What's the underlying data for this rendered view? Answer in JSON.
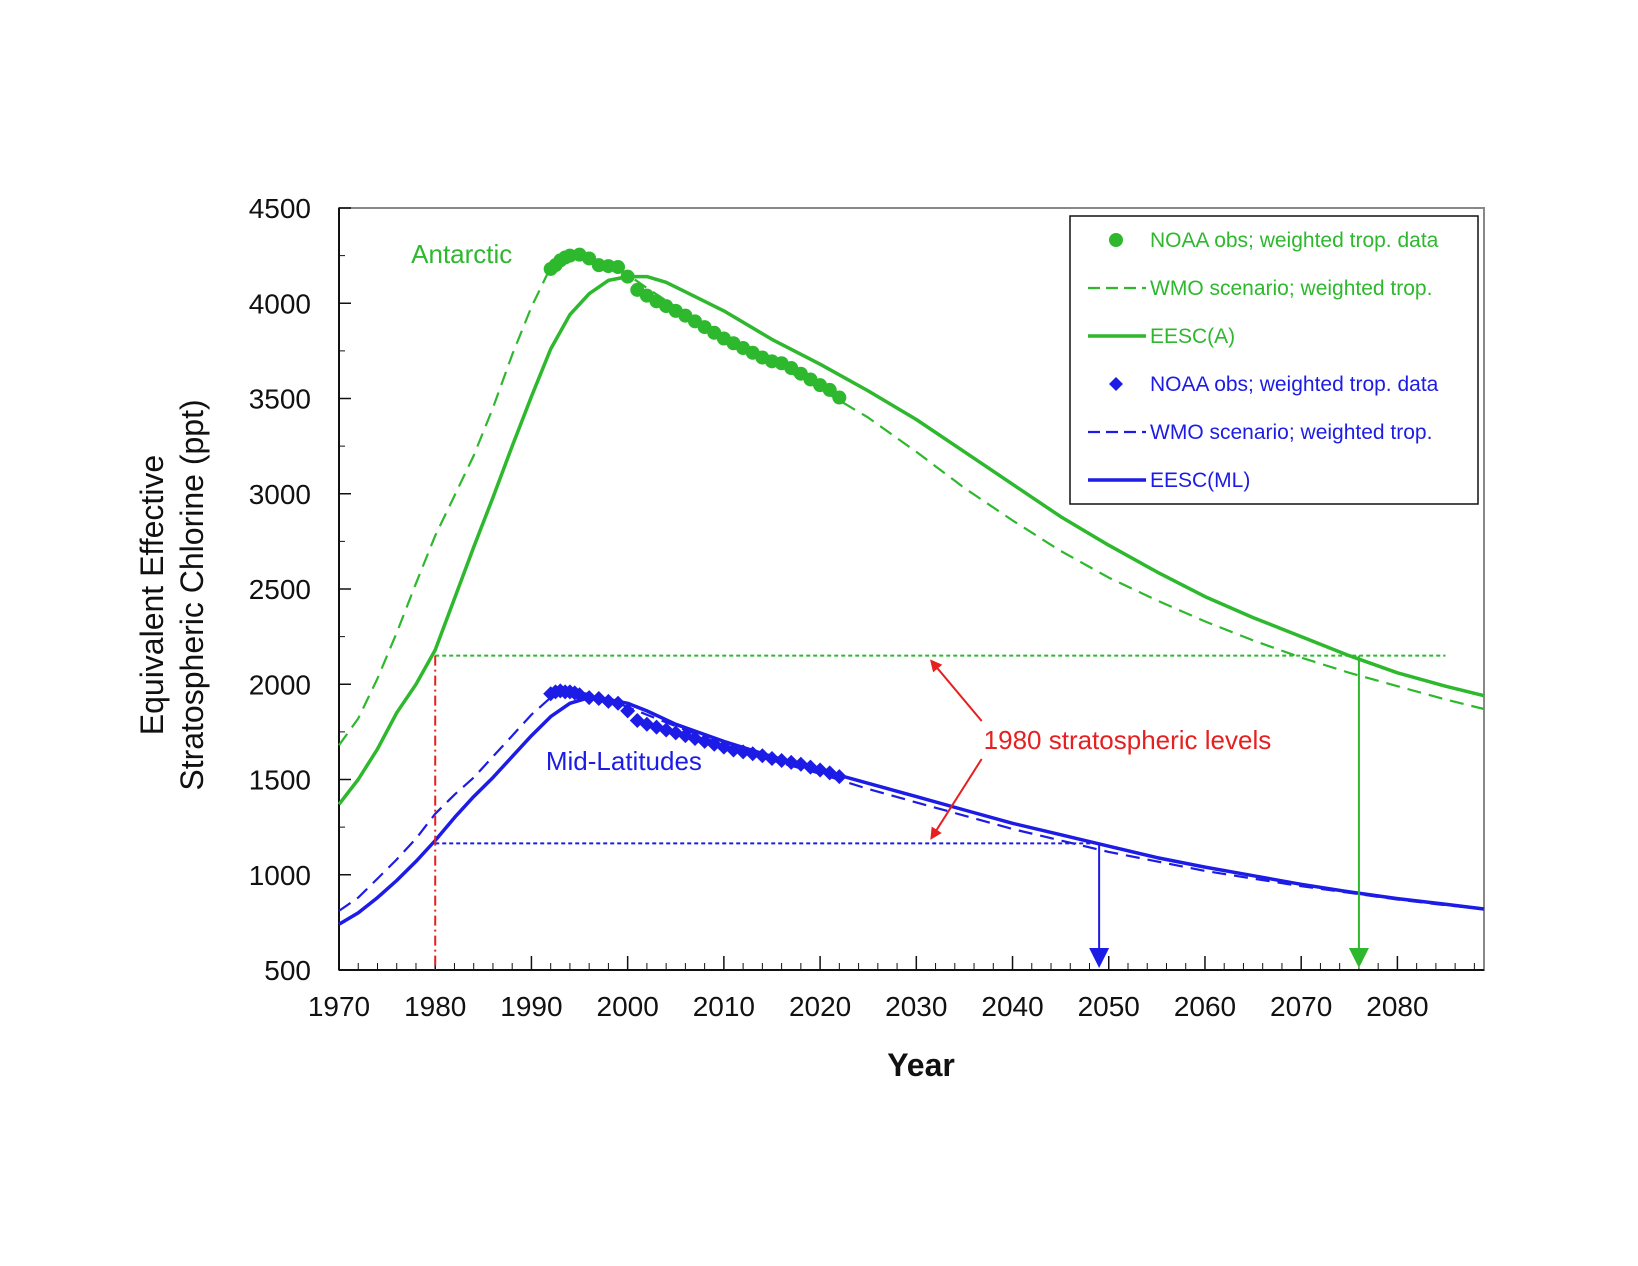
{
  "chart_data": {
    "type": "line",
    "xlabel": "Year",
    "ylabel_lines": [
      "Equivalent Effective",
      "Stratospheric Chlorine (ppt)"
    ],
    "xlim": [
      1970,
      2089
    ],
    "ylim": [
      500,
      4500
    ],
    "x_ticks": [
      1970,
      1980,
      1990,
      2000,
      2010,
      2020,
      2030,
      2040,
      2050,
      2060,
      2070,
      2080
    ],
    "y_ticks": [
      500,
      1000,
      1500,
      2000,
      2500,
      3000,
      3500,
      4000,
      4500
    ],
    "colors": {
      "green": "#2db82d",
      "blue": "#1c1ce6",
      "red": "#e62020",
      "axis": "#111111"
    },
    "series": [
      {
        "name": "NOAA obs; weighted trop. data",
        "group": "antarctic",
        "style": "circles",
        "x": [
          1992,
          1992.5,
          1993,
          1993.5,
          1994,
          1995,
          1996,
          1997,
          1998,
          1999,
          2000,
          2001,
          2002,
          2003,
          2004,
          2005,
          2006,
          2007,
          2008,
          2009,
          2010,
          2011,
          2012,
          2013,
          2014,
          2015,
          2016,
          2017,
          2018,
          2019,
          2020,
          2021,
          2022
        ],
        "y": [
          4180,
          4200,
          4225,
          4240,
          4250,
          4255,
          4235,
          4200,
          4195,
          4190,
          4140,
          4070,
          4040,
          4010,
          3985,
          3960,
          3935,
          3905,
          3875,
          3845,
          3815,
          3790,
          3765,
          3740,
          3715,
          3695,
          3685,
          3660,
          3630,
          3600,
          3570,
          3545,
          3505
        ]
      },
      {
        "name": "WMO scenario; weighted trop.",
        "group": "antarctic",
        "style": "dashed",
        "x": [
          1970,
          1972,
          1974,
          1976,
          1978,
          1980,
          1982,
          1984,
          1986,
          1988,
          1990,
          1992,
          1994,
          1996,
          1998,
          2000,
          2002,
          2005,
          2010,
          2015,
          2020,
          2025,
          2030,
          2035,
          2040,
          2045,
          2050,
          2055,
          2060,
          2065,
          2070,
          2075,
          2080,
          2085,
          2089
        ],
        "y": [
          1680,
          1820,
          2030,
          2270,
          2530,
          2780,
          2990,
          3200,
          3450,
          3730,
          3980,
          4190,
          4250,
          4230,
          4190,
          4150,
          4080,
          3980,
          3830,
          3690,
          3550,
          3400,
          3220,
          3030,
          2860,
          2700,
          2560,
          2440,
          2330,
          2230,
          2140,
          2060,
          1990,
          1920,
          1870
        ]
      },
      {
        "name": "EESC(A)",
        "group": "antarctic",
        "style": "solid",
        "x": [
          1970,
          1972,
          1974,
          1976,
          1978,
          1980,
          1982,
          1984,
          1986,
          1988,
          1990,
          1992,
          1994,
          1996,
          1998,
          2000,
          2002,
          2004,
          2006,
          2010,
          2015,
          2020,
          2025,
          2030,
          2035,
          2040,
          2045,
          2050,
          2055,
          2060,
          2065,
          2070,
          2075,
          2080,
          2085,
          2089
        ],
        "y": [
          1370,
          1500,
          1660,
          1850,
          2000,
          2180,
          2450,
          2720,
          2980,
          3250,
          3510,
          3760,
          3940,
          4050,
          4120,
          4140,
          4140,
          4110,
          4060,
          3960,
          3810,
          3680,
          3540,
          3390,
          3220,
          3050,
          2880,
          2730,
          2590,
          2460,
          2350,
          2250,
          2150,
          2060,
          1990,
          1940
        ]
      },
      {
        "name": "NOAA obs; weighted trop. data",
        "group": "midlatitudes",
        "style": "diamonds",
        "x": [
          1992,
          1992.5,
          1993,
          1993.5,
          1994,
          1994.5,
          1995,
          1996,
          1997,
          1998,
          1999,
          2000,
          2001,
          2002,
          2003,
          2004,
          2005,
          2006,
          2007,
          2008,
          2009,
          2010,
          2011,
          2012,
          2013,
          2014,
          2015,
          2016,
          2017,
          2018,
          2019,
          2020,
          2021,
          2022
        ],
        "y": [
          1950,
          1960,
          1965,
          1960,
          1960,
          1955,
          1945,
          1930,
          1925,
          1910,
          1900,
          1860,
          1810,
          1790,
          1775,
          1760,
          1745,
          1730,
          1715,
          1700,
          1685,
          1670,
          1655,
          1645,
          1635,
          1625,
          1610,
          1600,
          1590,
          1580,
          1565,
          1550,
          1535,
          1515
        ]
      },
      {
        "name": "WMO scenario; weighted trop.",
        "group": "midlatitudes",
        "style": "dashed",
        "x": [
          1970,
          1972,
          1974,
          1976,
          1978,
          1980,
          1982,
          1984,
          1986,
          1988,
          1990,
          1992,
          1994,
          1996,
          1998,
          2000,
          2005,
          2010,
          2015,
          2020,
          2025,
          2030,
          2035,
          2040,
          2045,
          2050,
          2055,
          2060,
          2065,
          2070,
          2075,
          2080,
          2085,
          2089
        ],
        "y": [
          810,
          880,
          980,
          1080,
          1190,
          1320,
          1420,
          1510,
          1620,
          1730,
          1840,
          1930,
          1960,
          1950,
          1920,
          1880,
          1780,
          1680,
          1600,
          1530,
          1450,
          1380,
          1310,
          1240,
          1180,
          1120,
          1070,
          1020,
          980,
          940,
          905,
          870,
          840,
          820
        ]
      },
      {
        "name": "EESC(ML)",
        "group": "midlatitudes",
        "style": "solid",
        "x": [
          1970,
          1972,
          1974,
          1976,
          1978,
          1980,
          1982,
          1984,
          1986,
          1988,
          1990,
          1992,
          1994,
          1996,
          1998,
          2000,
          2002,
          2005,
          2010,
          2015,
          2020,
          2025,
          2030,
          2035,
          2040,
          2045,
          2050,
          2055,
          2060,
          2065,
          2070,
          2075,
          2080,
          2085,
          2089
        ],
        "y": [
          740,
          800,
          880,
          970,
          1070,
          1180,
          1300,
          1410,
          1510,
          1620,
          1730,
          1830,
          1900,
          1930,
          1920,
          1900,
          1860,
          1790,
          1700,
          1620,
          1550,
          1480,
          1410,
          1340,
          1270,
          1210,
          1150,
          1090,
          1040,
          995,
          950,
          910,
          875,
          845,
          820
        ]
      }
    ],
    "reference_lines": {
      "antarctic_1980_level": 2150,
      "midlatitude_1980_level": 1165,
      "reference_year": 1980,
      "antarctic_line_end_year": 2085,
      "midlatitude_line_end_year": 2049,
      "antarctic_return_year": 2076,
      "midlatitude_return_year": 2049
    },
    "annotations": {
      "antarctic": "Antarctic",
      "midlatitudes": "Mid-Latitudes",
      "levels": "1980 stratospheric levels",
      "antarctic_label_at": [
        1977.5,
        4210
      ],
      "midlatitudes_label_at": [
        1991.5,
        1550
      ],
      "levels_label_at": [
        2037,
        1660
      ],
      "levels_arrow_targets": [
        [
          2031,
          2150
        ],
        [
          2031,
          1165
        ]
      ]
    }
  }
}
